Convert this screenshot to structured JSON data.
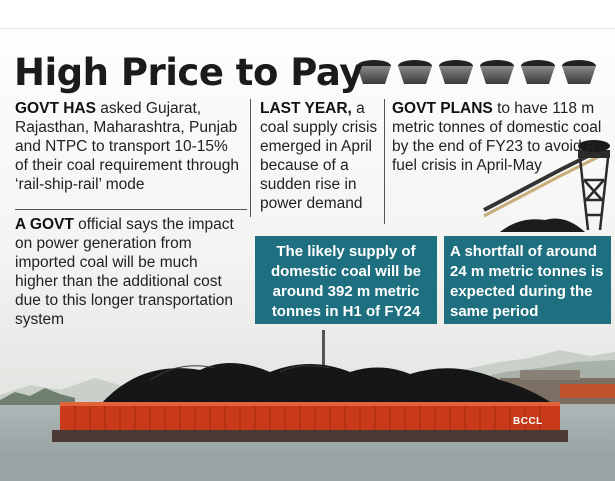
{
  "title": "High Price to Pay",
  "paragraphs": {
    "p1": {
      "lead": "GOVT HAS",
      "text": " asked Gujarat, Rajasthan, Maharashtra, Punjab and NTPC to transport 10-15% of their coal requirement through ‘rail-ship-rail’ mode"
    },
    "p2": {
      "lead": "A GOVT",
      "text": " official says the impact on power generation from imported coal will be much higher than the additional cost due to this longer transportation system"
    },
    "p3": {
      "lead": "LAST YEAR,",
      "text": " a coal supply crisis emerged in April because of a sudden rise in power demand"
    },
    "p4": {
      "lead": "GOVT PLANS",
      "text": " to have 118 m metric tonnes of domestic coal by the end of FY23 to avoid a fuel crisis in April-May"
    }
  },
  "boxes": {
    "supply": "The likely supply of domestic coal will be around 392 m metric tonnes in H1 of FY24",
    "shortfall": "A shortfall of around 24 m metric tonnes is expected during the same period"
  },
  "credit": "BCCL",
  "colors": {
    "box": "#1e7080",
    "title": "#1b1b1b",
    "barge": "#d2421f",
    "coal": "#1a1a1a",
    "water": "#9aa6a8"
  }
}
